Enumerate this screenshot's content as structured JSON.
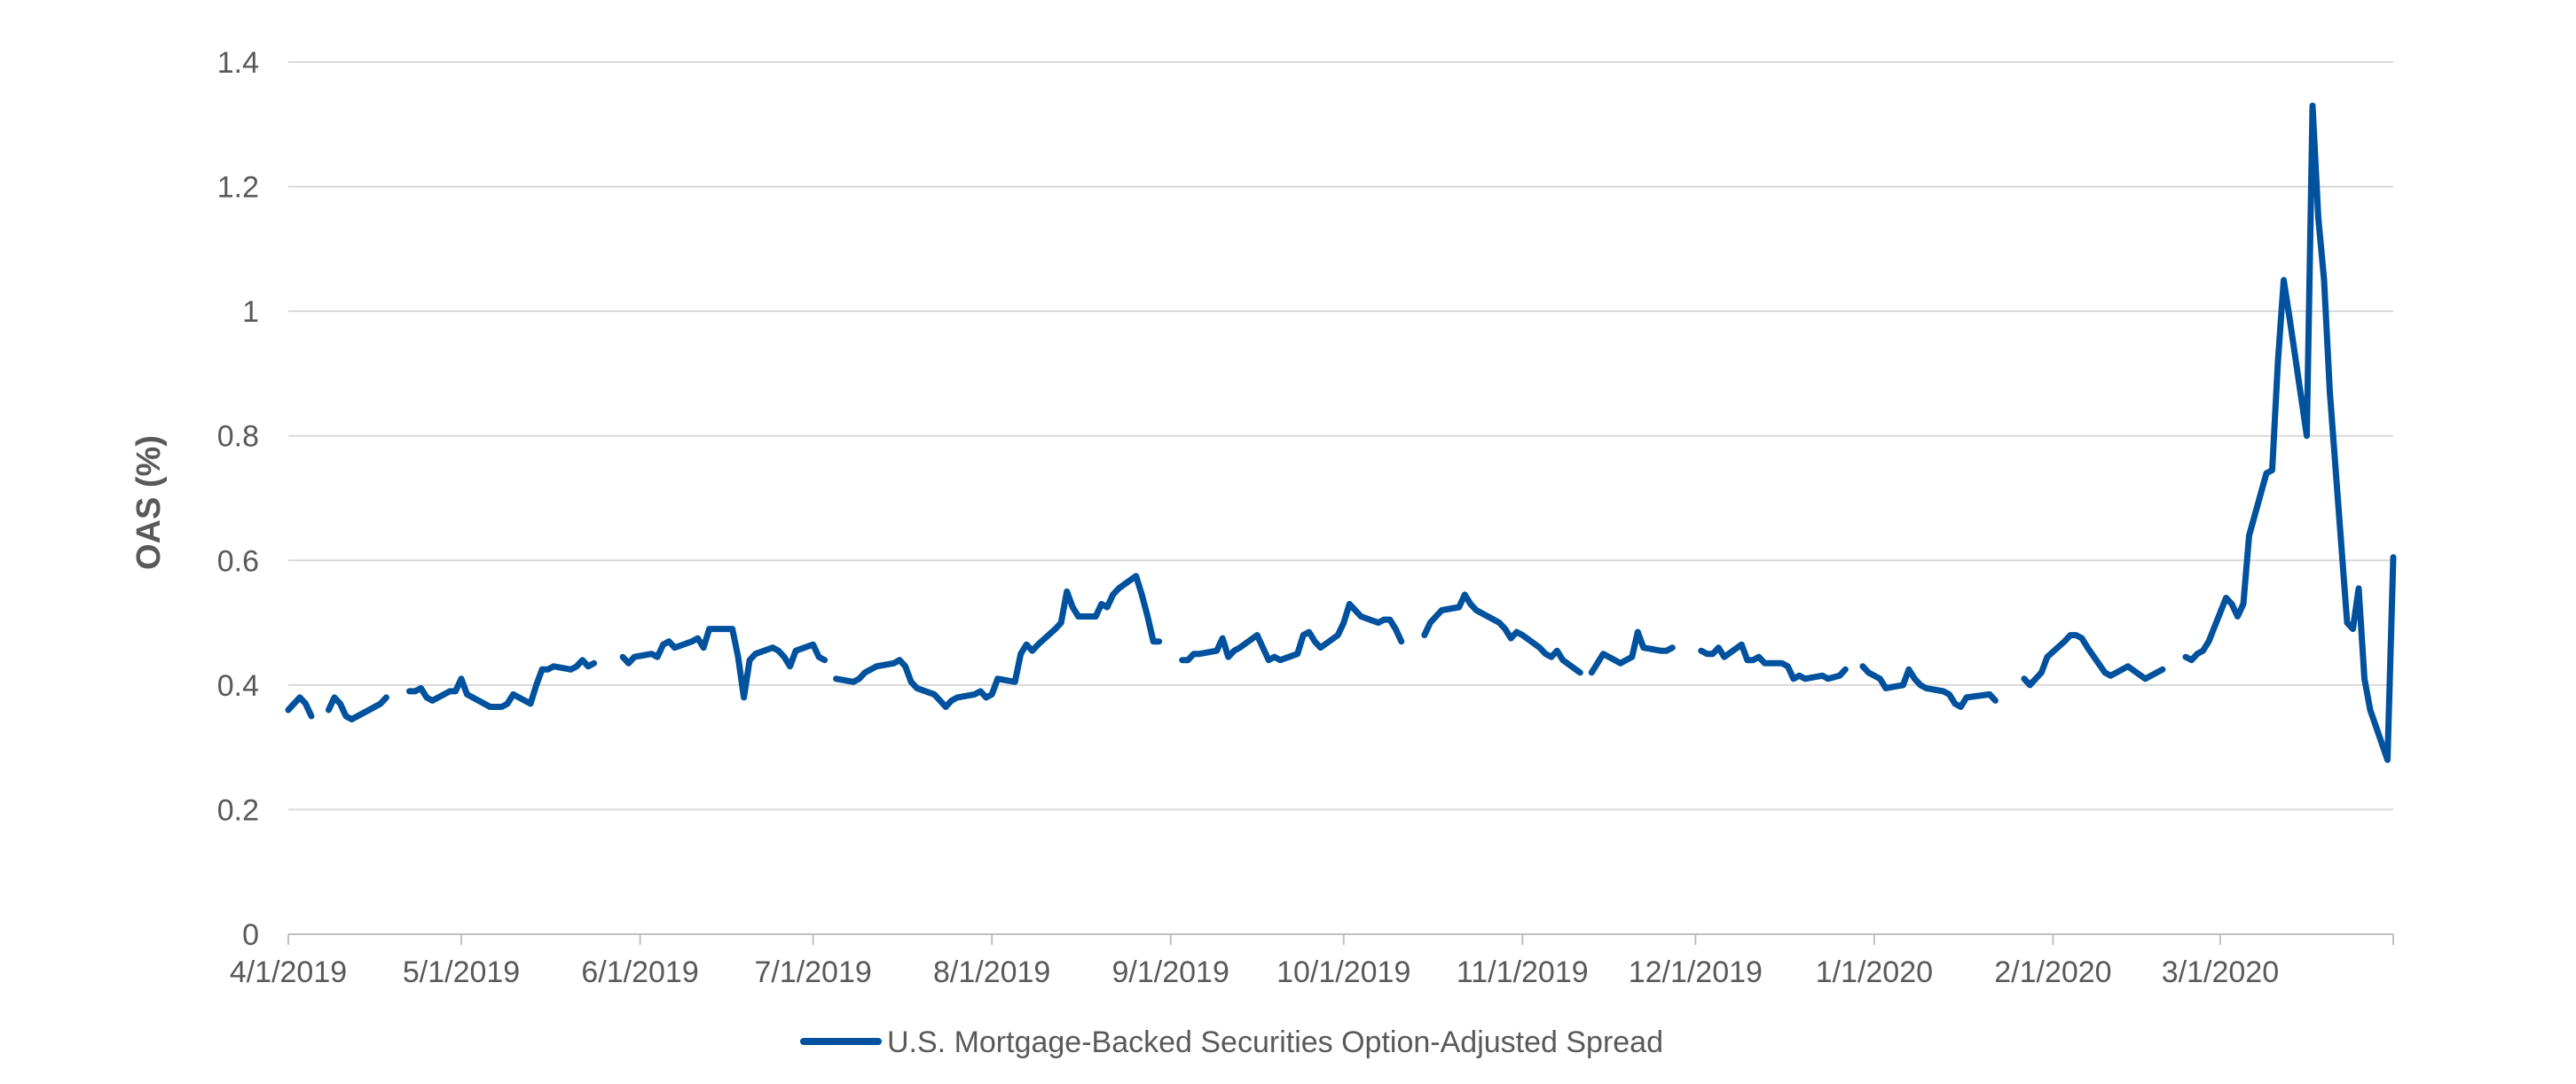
{
  "chart_data": {
    "type": "line",
    "title": "",
    "xlabel": "",
    "ylabel": "OAS (%)",
    "ylim": [
      0,
      1.4
    ],
    "yticks": [
      "0",
      "0.2",
      "0.4",
      "0.6",
      "0.8",
      "1",
      "1.2",
      "1.4"
    ],
    "xlim": [
      "4/1/2019",
      "3/31/2020"
    ],
    "xticks": [
      "4/1/2019",
      "5/1/2019",
      "6/1/2019",
      "7/1/2019",
      "8/1/2019",
      "9/1/2019",
      "10/1/2019",
      "11/1/2019",
      "12/1/2019",
      "1/1/2020",
      "2/1/2020",
      "3/1/2020"
    ],
    "grid": "horizontal",
    "legend": "bottom-center",
    "colors": {
      "series": "#00519E",
      "grid": "#D9D9D9",
      "axis": "#BFBFBF",
      "text": "#595959"
    },
    "series": [
      {
        "name": "U.S. Mortgage-Backed Securities Option-Adjusted Spread",
        "segments": [
          {
            "x": [
              "2019-04-01",
              "2019-04-02",
              "2019-04-03",
              "2019-04-04",
              "2019-04-05"
            ],
            "y": [
              0.36,
              0.37,
              0.38,
              0.37,
              0.35
            ]
          },
          {
            "x": [
              "2019-04-08",
              "2019-04-09",
              "2019-04-10",
              "2019-04-11",
              "2019-04-12",
              "2019-04-15",
              "2019-04-16",
              "2019-04-17",
              "2019-04-18"
            ],
            "y": [
              0.36,
              0.38,
              0.37,
              0.35,
              0.345,
              0.36,
              0.365,
              0.37,
              0.38
            ]
          },
          {
            "x": [
              "2019-04-22",
              "2019-04-23",
              "2019-04-24",
              "2019-04-25",
              "2019-04-26",
              "2019-04-29",
              "2019-04-30",
              "2019-05-01",
              "2019-05-02",
              "2019-05-03",
              "2019-05-06",
              "2019-05-07",
              "2019-05-08",
              "2019-05-09",
              "2019-05-10",
              "2019-05-13",
              "2019-05-14",
              "2019-05-15",
              "2019-05-16",
              "2019-05-17",
              "2019-05-20",
              "2019-05-21",
              "2019-05-22",
              "2019-05-23",
              "2019-05-24"
            ],
            "y": [
              0.39,
              0.39,
              0.395,
              0.38,
              0.375,
              0.39,
              0.39,
              0.41,
              0.385,
              0.38,
              0.365,
              0.365,
              0.365,
              0.37,
              0.385,
              0.37,
              0.4,
              0.425,
              0.425,
              0.43,
              0.425,
              0.43,
              0.44,
              0.43,
              0.435
            ]
          },
          {
            "x": [
              "2019-05-29",
              "2019-05-30",
              "2019-05-31",
              "2019-06-03",
              "2019-06-04",
              "2019-06-05",
              "2019-06-06",
              "2019-06-07",
              "2019-06-10",
              "2019-06-11",
              "2019-06-12",
              "2019-06-13",
              "2019-06-14",
              "2019-06-17",
              "2019-06-18",
              "2019-06-19",
              "2019-06-20",
              "2019-06-21",
              "2019-06-24",
              "2019-06-25",
              "2019-06-26",
              "2019-06-27",
              "2019-06-28",
              "2019-07-01",
              "2019-07-02",
              "2019-07-03"
            ],
            "y": [
              0.445,
              0.435,
              0.445,
              0.45,
              0.445,
              0.465,
              0.47,
              0.46,
              0.47,
              0.475,
              0.46,
              0.49,
              0.49,
              0.49,
              0.445,
              0.38,
              0.44,
              0.45,
              0.46,
              0.455,
              0.445,
              0.43,
              0.455,
              0.465,
              0.445,
              0.44
            ]
          },
          {
            "x": [
              "2019-07-05",
              "2019-07-08",
              "2019-07-09",
              "2019-07-10",
              "2019-07-11",
              "2019-07-12",
              "2019-07-15",
              "2019-07-16",
              "2019-07-17",
              "2019-07-18",
              "2019-07-19",
              "2019-07-22",
              "2019-07-23",
              "2019-07-24",
              "2019-07-25",
              "2019-07-26",
              "2019-07-29",
              "2019-07-30",
              "2019-07-31",
              "2019-08-01",
              "2019-08-02",
              "2019-08-05",
              "2019-08-06",
              "2019-08-07",
              "2019-08-08",
              "2019-08-09",
              "2019-08-12",
              "2019-08-13",
              "2019-08-14",
              "2019-08-15",
              "2019-08-16",
              "2019-08-19",
              "2019-08-20",
              "2019-08-21",
              "2019-08-22",
              "2019-08-23",
              "2019-08-26",
              "2019-08-27",
              "2019-08-28",
              "2019-08-29",
              "2019-08-30"
            ],
            "y": [
              0.41,
              0.405,
              0.41,
              0.42,
              0.425,
              0.43,
              0.435,
              0.44,
              0.43,
              0.405,
              0.395,
              0.385,
              0.375,
              0.365,
              0.375,
              0.38,
              0.385,
              0.39,
              0.38,
              0.385,
              0.41,
              0.405,
              0.45,
              0.465,
              0.455,
              0.465,
              0.49,
              0.5,
              0.55,
              0.525,
              0.51,
              0.51,
              0.53,
              0.525,
              0.545,
              0.555,
              0.575,
              0.545,
              0.51,
              0.47,
              0.47
            ]
          },
          {
            "x": [
              "2019-09-03",
              "2019-09-04",
              "2019-09-05",
              "2019-09-06",
              "2019-09-09",
              "2019-09-10",
              "2019-09-11",
              "2019-09-12",
              "2019-09-13",
              "2019-09-16",
              "2019-09-17",
              "2019-09-18",
              "2019-09-19",
              "2019-09-20",
              "2019-09-23",
              "2019-09-24",
              "2019-09-25",
              "2019-09-26",
              "2019-09-27",
              "2019-09-30",
              "2019-10-01",
              "2019-10-02",
              "2019-10-03",
              "2019-10-04",
              "2019-10-07",
              "2019-10-08",
              "2019-10-09",
              "2019-10-10",
              "2019-10-11"
            ],
            "y": [
              0.44,
              0.44,
              0.45,
              0.45,
              0.455,
              0.475,
              0.445,
              0.455,
              0.46,
              0.48,
              0.46,
              0.44,
              0.445,
              0.44,
              0.45,
              0.48,
              0.485,
              0.47,
              0.46,
              0.48,
              0.5,
              0.53,
              0.52,
              0.51,
              0.5,
              0.505,
              0.505,
              0.49,
              0.47
            ]
          },
          {
            "x": [
              "2019-10-15",
              "2019-10-16",
              "2019-10-17",
              "2019-10-18",
              "2019-10-21",
              "2019-10-22",
              "2019-10-23",
              "2019-10-24",
              "2019-10-25",
              "2019-10-28",
              "2019-10-29",
              "2019-10-30",
              "2019-10-31",
              "2019-11-01",
              "2019-11-04",
              "2019-11-05",
              "2019-11-06",
              "2019-11-07",
              "2019-11-08",
              "2019-11-11"
            ],
            "y": [
              0.48,
              0.5,
              0.51,
              0.52,
              0.525,
              0.545,
              0.53,
              0.52,
              0.515,
              0.5,
              0.49,
              0.475,
              0.485,
              0.48,
              0.46,
              0.45,
              0.445,
              0.455,
              0.44,
              0.42
            ]
          },
          {
            "x": [
              "2019-11-13",
              "2019-11-14",
              "2019-11-15",
              "2019-11-18",
              "2019-11-19",
              "2019-11-20",
              "2019-11-21",
              "2019-11-22",
              "2019-11-25",
              "2019-11-26",
              "2019-11-27"
            ],
            "y": [
              0.42,
              0.435,
              0.45,
              0.435,
              0.44,
              0.445,
              0.485,
              0.46,
              0.455,
              0.455,
              0.46
            ]
          },
          {
            "x": [
              "2019-12-02",
              "2019-12-03",
              "2019-12-04",
              "2019-12-05",
              "2019-12-06",
              "2019-12-09",
              "2019-12-10",
              "2019-12-11",
              "2019-12-12",
              "2019-12-13",
              "2019-12-16",
              "2019-12-17",
              "2019-12-18",
              "2019-12-19",
              "2019-12-20",
              "2019-12-23",
              "2019-12-24",
              "2019-12-26",
              "2019-12-27"
            ],
            "y": [
              0.455,
              0.45,
              0.45,
              0.46,
              0.445,
              0.465,
              0.44,
              0.44,
              0.445,
              0.435,
              0.435,
              0.43,
              0.41,
              0.415,
              0.41,
              0.415,
              0.41,
              0.415,
              0.425
            ]
          },
          {
            "x": [
              "2019-12-30",
              "2019-12-31",
              "2020-01-02",
              "2020-01-03",
              "2020-01-06",
              "2020-01-07",
              "2020-01-08",
              "2020-01-09",
              "2020-01-10",
              "2020-01-13",
              "2020-01-14",
              "2020-01-15",
              "2020-01-16",
              "2020-01-17",
              "2020-01-21",
              "2020-01-22"
            ],
            "y": [
              0.43,
              0.42,
              0.41,
              0.395,
              0.4,
              0.425,
              0.41,
              0.4,
              0.395,
              0.39,
              0.385,
              0.37,
              0.365,
              0.38,
              0.385,
              0.375
            ]
          },
          {
            "x": [
              "2020-01-27",
              "2020-01-28",
              "2020-01-29",
              "2020-01-30",
              "2020-01-31",
              "2020-02-03",
              "2020-02-04",
              "2020-02-05",
              "2020-02-06",
              "2020-02-07",
              "2020-02-10",
              "2020-02-11",
              "2020-02-12",
              "2020-02-13",
              "2020-02-14",
              "2020-02-17",
              "2020-02-18",
              "2020-02-19",
              "2020-02-20"
            ],
            "y": [
              0.41,
              0.4,
              0.41,
              0.42,
              0.445,
              0.47,
              0.48,
              0.48,
              0.475,
              0.46,
              0.42,
              0.415,
              0.42,
              0.425,
              0.43,
              0.41,
              0.415,
              0.42,
              0.425
            ]
          },
          {
            "x": [
              "2020-02-24",
              "2020-02-25",
              "2020-02-26",
              "2020-02-27",
              "2020-02-28",
              "2020-03-02",
              "2020-03-03",
              "2020-03-04",
              "2020-03-05",
              "2020-03-06",
              "2020-03-09",
              "2020-03-10",
              "2020-03-11",
              "2020-03-12",
              "2020-03-13",
              "2020-03-16",
              "2020-03-17",
              "2020-03-18",
              "2020-03-19",
              "2020-03-20",
              "2020-03-23",
              "2020-03-24",
              "2020-03-25",
              "2020-03-26",
              "2020-03-27",
              "2020-03-30",
              "2020-03-31"
            ],
            "y": [
              0.445,
              0.44,
              0.45,
              0.455,
              0.47,
              0.54,
              0.53,
              0.51,
              0.53,
              0.64,
              0.74,
              0.745,
              0.92,
              1.05,
              0.99,
              0.8,
              1.33,
              1.15,
              1.05,
              0.87,
              0.5,
              0.49,
              0.555,
              0.41,
              0.36,
              0.28,
              0.605
            ]
          }
        ]
      }
    ]
  }
}
